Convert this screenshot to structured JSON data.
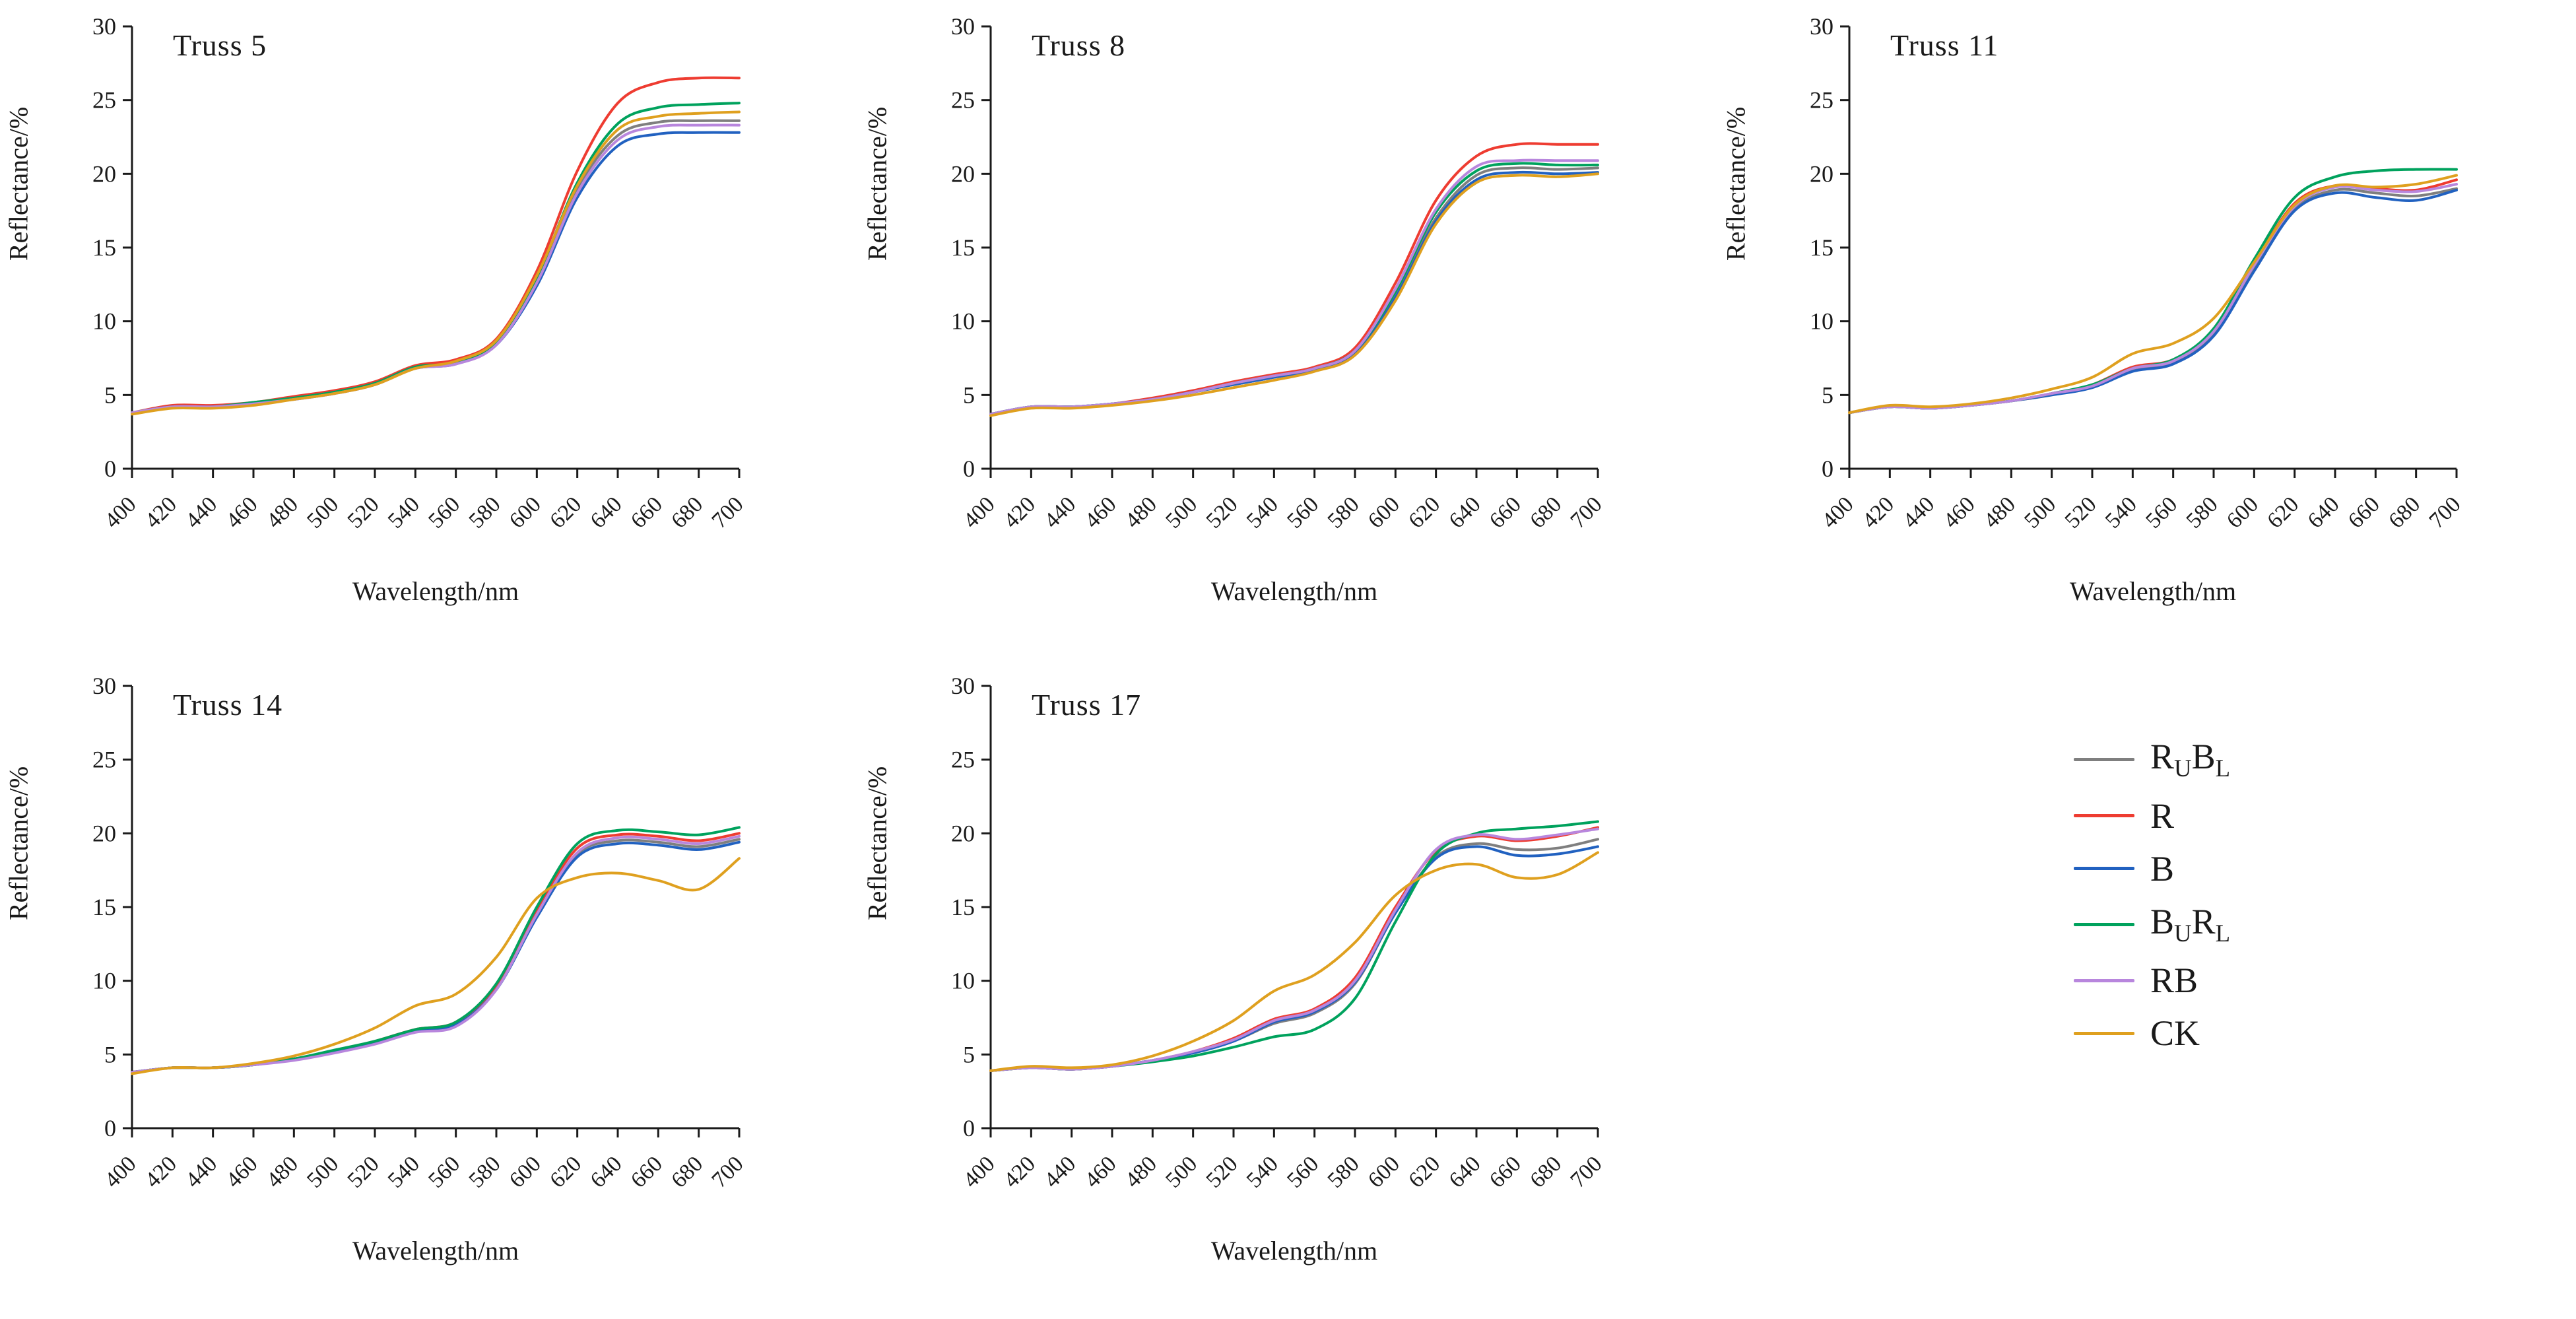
{
  "figure": {
    "background": "#ffffff",
    "text_color": "#1a1a1a"
  },
  "axis": {
    "xlabel": "Wavelength/nm",
    "ylabel": "Reflectance/%",
    "x_ticks": [
      400,
      420,
      440,
      460,
      480,
      500,
      520,
      540,
      560,
      580,
      600,
      620,
      640,
      660,
      680,
      700
    ],
    "y_ticks": [
      0,
      5,
      10,
      15,
      20,
      25,
      30
    ],
    "xlim": [
      400,
      700
    ],
    "ylim": [
      0,
      30
    ],
    "grid": false
  },
  "legend": {
    "position": "bottom-right-cell",
    "items": [
      {
        "name": "R_{U}B_{L}",
        "color": "#7f7f7f"
      },
      {
        "name": "R",
        "color": "#ee3c31"
      },
      {
        "name": "B",
        "color": "#2161c0"
      },
      {
        "name": "B_{U}R_{L}",
        "color": "#00a25d"
      },
      {
        "name": "RB",
        "color": "#b886dd"
      },
      {
        "name": "CK",
        "color": "#dfa01f"
      }
    ]
  },
  "chart_data": [
    {
      "type": "line",
      "title": "Truss 5",
      "xlabel": "Wavelength/nm",
      "ylabel": "Reflectance/%",
      "x": [
        400,
        420,
        440,
        460,
        480,
        500,
        520,
        540,
        560,
        580,
        600,
        620,
        640,
        660,
        680,
        700
      ],
      "series": [
        {
          "name": "R_{U}B_{L}",
          "values": [
            3.8,
            4.2,
            4.2,
            4.4,
            4.8,
            5.2,
            5.8,
            6.9,
            7.2,
            8.5,
            12.8,
            19.0,
            22.6,
            23.5,
            23.6,
            23.6
          ]
        },
        {
          "name": "R",
          "values": [
            3.8,
            4.3,
            4.3,
            4.5,
            4.9,
            5.3,
            5.9,
            7.0,
            7.4,
            8.8,
            13.4,
            20.2,
            24.8,
            26.2,
            26.5,
            26.5
          ]
        },
        {
          "name": "B",
          "values": [
            3.8,
            4.2,
            4.2,
            4.4,
            4.7,
            5.1,
            5.7,
            6.8,
            7.1,
            8.4,
            12.4,
            18.4,
            21.9,
            22.7,
            22.8,
            22.8
          ]
        },
        {
          "name": "B_{U}R_{L}",
          "values": [
            3.8,
            4.2,
            4.2,
            4.5,
            4.8,
            5.2,
            5.8,
            6.9,
            7.2,
            8.6,
            13.0,
            19.4,
            23.4,
            24.5,
            24.7,
            24.8
          ]
        },
        {
          "name": "RB",
          "values": [
            3.8,
            4.2,
            4.2,
            4.4,
            4.7,
            5.1,
            5.7,
            6.8,
            7.1,
            8.4,
            12.6,
            18.7,
            22.3,
            23.2,
            23.3,
            23.3
          ]
        },
        {
          "name": "CK",
          "values": [
            3.7,
            4.1,
            4.1,
            4.3,
            4.7,
            5.1,
            5.7,
            6.8,
            7.3,
            8.7,
            13.1,
            19.2,
            23.0,
            23.9,
            24.1,
            24.2
          ]
        }
      ]
    },
    {
      "type": "line",
      "title": "Truss 8",
      "xlabel": "Wavelength/nm",
      "ylabel": "Reflectance/%",
      "x": [
        400,
        420,
        440,
        460,
        480,
        500,
        520,
        540,
        560,
        580,
        600,
        620,
        640,
        660,
        680,
        700
      ],
      "series": [
        {
          "name": "R_{U}B_{L}",
          "values": [
            3.7,
            4.2,
            4.2,
            4.4,
            4.7,
            5.2,
            5.7,
            6.2,
            6.7,
            7.9,
            11.8,
            17.0,
            19.9,
            20.4,
            20.3,
            20.4
          ]
        },
        {
          "name": "R",
          "values": [
            3.7,
            4.2,
            4.2,
            4.4,
            4.8,
            5.3,
            5.9,
            6.4,
            6.9,
            8.2,
            12.6,
            18.2,
            21.2,
            22.0,
            22.0,
            22.0
          ]
        },
        {
          "name": "B",
          "values": [
            3.7,
            4.2,
            4.2,
            4.4,
            4.7,
            5.2,
            5.7,
            6.2,
            6.7,
            7.8,
            11.6,
            16.8,
            19.6,
            20.1,
            20.0,
            20.1
          ]
        },
        {
          "name": "B_{U}R_{L}",
          "values": [
            3.7,
            4.2,
            4.2,
            4.4,
            4.7,
            5.2,
            5.8,
            6.3,
            6.8,
            8.0,
            12.0,
            17.4,
            20.2,
            20.7,
            20.6,
            20.6
          ]
        },
        {
          "name": "RB",
          "values": [
            3.7,
            4.2,
            4.2,
            4.4,
            4.7,
            5.2,
            5.8,
            6.3,
            6.8,
            8.0,
            12.2,
            17.6,
            20.5,
            20.9,
            20.9,
            20.9
          ]
        },
        {
          "name": "CK",
          "values": [
            3.6,
            4.1,
            4.1,
            4.3,
            4.6,
            5.0,
            5.5,
            6.0,
            6.6,
            7.7,
            11.4,
            16.6,
            19.4,
            19.9,
            19.8,
            20.0
          ]
        }
      ]
    },
    {
      "type": "line",
      "title": "Truss 11",
      "xlabel": "Wavelength/nm",
      "ylabel": "Reflectance/%",
      "x": [
        400,
        420,
        440,
        460,
        480,
        500,
        520,
        540,
        560,
        580,
        600,
        620,
        640,
        660,
        680,
        700
      ],
      "series": [
        {
          "name": "R_{U}B_{L}",
          "values": [
            3.8,
            4.2,
            4.1,
            4.3,
            4.6,
            5.0,
            5.6,
            6.7,
            7.2,
            9.2,
            13.6,
            17.6,
            18.9,
            18.7,
            18.5,
            19.0
          ]
        },
        {
          "name": "R",
          "values": [
            3.8,
            4.2,
            4.1,
            4.3,
            4.6,
            5.1,
            5.7,
            6.9,
            7.4,
            9.4,
            13.9,
            18.0,
            19.2,
            19.0,
            18.9,
            19.6
          ]
        },
        {
          "name": "B",
          "values": [
            3.8,
            4.2,
            4.1,
            4.3,
            4.6,
            5.0,
            5.5,
            6.6,
            7.1,
            9.0,
            13.4,
            17.5,
            18.7,
            18.4,
            18.2,
            18.9
          ]
        },
        {
          "name": "B_{U}R_{L}",
          "values": [
            3.8,
            4.2,
            4.1,
            4.3,
            4.6,
            5.1,
            5.7,
            6.8,
            7.4,
            9.5,
            14.2,
            18.4,
            19.8,
            20.2,
            20.3,
            20.3
          ]
        },
        {
          "name": "RB",
          "values": [
            3.8,
            4.2,
            4.1,
            4.3,
            4.6,
            5.1,
            5.6,
            6.8,
            7.3,
            9.3,
            13.8,
            17.8,
            19.1,
            18.9,
            18.8,
            19.3
          ]
        },
        {
          "name": "CK",
          "values": [
            3.8,
            4.3,
            4.2,
            4.4,
            4.8,
            5.4,
            6.2,
            7.8,
            8.5,
            10.2,
            14.0,
            17.9,
            19.2,
            19.1,
            19.3,
            19.9
          ]
        }
      ]
    },
    {
      "type": "line",
      "title": "Truss 14",
      "xlabel": "Wavelength/nm",
      "ylabel": "Reflectance/%",
      "x": [
        400,
        420,
        440,
        460,
        480,
        500,
        520,
        540,
        560,
        580,
        600,
        620,
        640,
        660,
        680,
        700
      ],
      "series": [
        {
          "name": "R_{U}B_{L}",
          "values": [
            3.8,
            4.1,
            4.1,
            4.3,
            4.7,
            5.2,
            5.8,
            6.6,
            7.1,
            9.5,
            14.5,
            18.6,
            19.5,
            19.4,
            19.1,
            19.6
          ]
        },
        {
          "name": "R",
          "values": [
            3.8,
            4.1,
            4.1,
            4.3,
            4.7,
            5.2,
            5.9,
            6.7,
            7.2,
            9.7,
            14.8,
            19.0,
            19.9,
            19.8,
            19.5,
            20.0
          ]
        },
        {
          "name": "B",
          "values": [
            3.8,
            4.1,
            4.1,
            4.3,
            4.7,
            5.2,
            5.8,
            6.6,
            7.0,
            9.4,
            14.3,
            18.4,
            19.3,
            19.2,
            18.9,
            19.4
          ]
        },
        {
          "name": "B_{U}R_{L}",
          "values": [
            3.8,
            4.1,
            4.1,
            4.3,
            4.7,
            5.3,
            5.9,
            6.7,
            7.2,
            9.8,
            15.0,
            19.3,
            20.2,
            20.1,
            19.9,
            20.4
          ]
        },
        {
          "name": "RB",
          "values": [
            3.8,
            4.1,
            4.1,
            4.3,
            4.6,
            5.1,
            5.7,
            6.5,
            6.9,
            9.4,
            14.5,
            18.7,
            19.7,
            19.6,
            19.3,
            19.8
          ]
        },
        {
          "name": "CK",
          "values": [
            3.7,
            4.1,
            4.1,
            4.4,
            4.9,
            5.7,
            6.8,
            8.3,
            9.1,
            11.6,
            15.6,
            17.0,
            17.3,
            16.8,
            16.2,
            18.3
          ]
        }
      ]
    },
    {
      "type": "line",
      "title": "Truss 17",
      "xlabel": "Wavelength/nm",
      "ylabel": "Reflectance/%",
      "x": [
        400,
        420,
        440,
        460,
        480,
        500,
        520,
        540,
        560,
        580,
        600,
        620,
        640,
        660,
        680,
        700
      ],
      "series": [
        {
          "name": "R_{U}B_{L}",
          "values": [
            3.9,
            4.1,
            4.0,
            4.2,
            4.6,
            5.1,
            5.9,
            7.1,
            7.8,
            9.8,
            14.6,
            18.4,
            19.3,
            18.9,
            19.0,
            19.6
          ]
        },
        {
          "name": "R",
          "values": [
            3.9,
            4.1,
            4.0,
            4.2,
            4.6,
            5.2,
            6.1,
            7.4,
            8.1,
            10.2,
            15.0,
            18.8,
            19.8,
            19.5,
            19.8,
            20.4
          ]
        },
        {
          "name": "B",
          "values": [
            3.9,
            4.1,
            4.0,
            4.2,
            4.6,
            5.1,
            5.9,
            7.2,
            7.9,
            9.9,
            14.6,
            18.3,
            19.1,
            18.5,
            18.6,
            19.1
          ]
        },
        {
          "name": "B_{U}R_{L}",
          "values": [
            3.9,
            4.1,
            4.0,
            4.2,
            4.5,
            4.9,
            5.5,
            6.2,
            6.7,
            8.8,
            14.0,
            18.6,
            20.0,
            20.3,
            20.5,
            20.8
          ]
        },
        {
          "name": "RB",
          "values": [
            3.9,
            4.1,
            4.0,
            4.2,
            4.6,
            5.2,
            6.0,
            7.3,
            8.0,
            10.0,
            14.8,
            18.9,
            19.9,
            19.6,
            19.9,
            20.3
          ]
        },
        {
          "name": "CK",
          "values": [
            3.9,
            4.2,
            4.1,
            4.3,
            4.9,
            5.9,
            7.3,
            9.3,
            10.4,
            12.6,
            15.8,
            17.5,
            17.9,
            17.0,
            17.2,
            18.7
          ]
        }
      ]
    }
  ]
}
